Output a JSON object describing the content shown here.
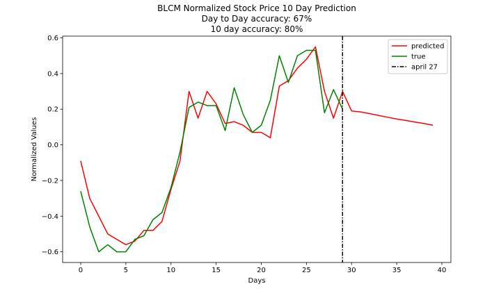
{
  "chart_data": {
    "type": "line",
    "title": [
      "BLCM Normalized Stock Price 10 Day Prediction",
      "Day to Day accuracy: 67%",
      "10 day accuracy: 80%"
    ],
    "xlabel": "Days",
    "ylabel": "Normalized Values",
    "xlim": [
      -2,
      41
    ],
    "ylim": [
      -0.66,
      0.61
    ],
    "xticks": [
      0,
      5,
      10,
      15,
      20,
      25,
      30,
      35,
      40
    ],
    "xtick_labels": [
      "0",
      "5",
      "10",
      "15",
      "20",
      "25",
      "30",
      "35",
      "40"
    ],
    "yticks": [
      -0.6,
      -0.4,
      -0.2,
      0.0,
      0.2,
      0.4,
      0.6
    ],
    "ytick_labels": [
      "−0.6",
      "−0.4",
      "−0.2",
      "0.0",
      "0.2",
      "0.4",
      "0.6"
    ],
    "grid": false,
    "legend_position": "top-right",
    "series": [
      {
        "name": "predicted",
        "color": "#ff0000",
        "x": [
          0,
          1,
          2,
          3,
          4,
          5,
          6,
          7,
          8,
          9,
          10,
          11,
          12,
          13,
          14,
          15,
          16,
          17,
          18,
          19,
          20,
          21,
          22,
          23,
          24,
          25,
          26,
          27,
          28,
          29,
          30,
          31,
          32,
          33,
          34,
          35,
          36,
          37,
          38,
          39
        ],
        "y": [
          -0.09,
          -0.3,
          -0.4,
          -0.5,
          -0.53,
          -0.56,
          -0.54,
          -0.48,
          -0.48,
          -0.43,
          -0.25,
          -0.09,
          0.3,
          0.15,
          0.3,
          0.23,
          0.12,
          0.13,
          0.11,
          0.07,
          0.07,
          0.04,
          0.33,
          0.36,
          0.43,
          0.48,
          0.55,
          0.3,
          0.15,
          0.3,
          0.19,
          0.185,
          0.175,
          0.165,
          0.155,
          0.145,
          0.137,
          0.128,
          0.12,
          0.11
        ]
      },
      {
        "name": "true",
        "color": "#008000",
        "x": [
          0,
          1,
          2,
          3,
          4,
          5,
          6,
          7,
          8,
          9,
          10,
          11,
          12,
          13,
          14,
          15,
          16,
          17,
          18,
          19,
          20,
          21,
          22,
          23,
          24,
          25,
          26,
          27,
          28,
          29
        ],
        "y": [
          -0.26,
          -0.46,
          -0.6,
          -0.56,
          -0.6,
          -0.6,
          -0.53,
          -0.51,
          -0.42,
          -0.38,
          -0.24,
          -0.04,
          0.21,
          0.24,
          0.22,
          0.22,
          0.08,
          0.32,
          0.17,
          0.07,
          0.11,
          0.25,
          0.5,
          0.35,
          0.5,
          0.53,
          0.53,
          0.18,
          0.31,
          0.2
        ]
      }
    ],
    "vline": {
      "name": "april 27",
      "x": 29,
      "color": "#000000",
      "style": "dash-dot"
    }
  }
}
